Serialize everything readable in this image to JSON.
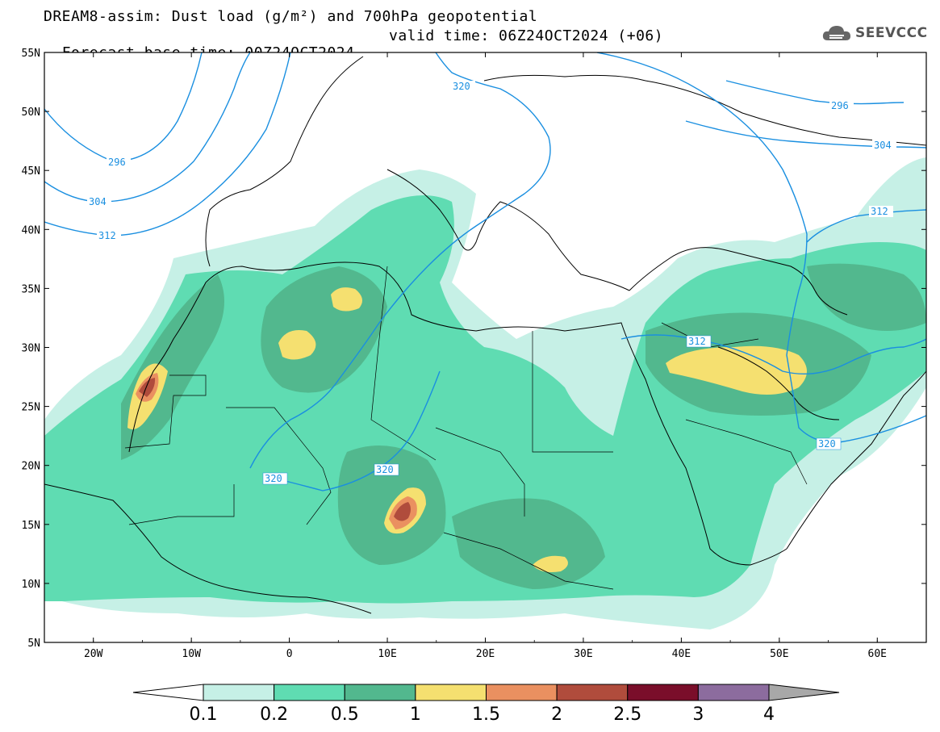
{
  "header": {
    "line1": "DREAM8-assim: Dust load (g/m²) and 700hPa geopotential",
    "base_time": "Forecast base time: 00Z24OCT2024",
    "valid_time": "valid time: 06Z24OCT2024 (+06)"
  },
  "logo": {
    "text": "SEEVCCC",
    "icon": "cloud-icon"
  },
  "map": {
    "lon_range": [
      -25,
      65
    ],
    "lat_range": [
      5,
      55
    ],
    "lat_labels": [
      "5N",
      "10N",
      "15N",
      "20N",
      "25N",
      "30N",
      "35N",
      "40N",
      "45N",
      "50N",
      "55N"
    ],
    "lon_labels": [
      "20W",
      "10W",
      "0",
      "10E",
      "20E",
      "30E",
      "40E",
      "50E",
      "60E"
    ],
    "contour_color": "#1a8fe0",
    "contour_labels": [
      "296",
      "304",
      "312",
      "320",
      "320",
      "320",
      "296",
      "304",
      "312",
      "312",
      "320"
    ]
  },
  "colorbar": {
    "levels": [
      "0.1",
      "0.2",
      "0.5",
      "1",
      "1.5",
      "2",
      "2.5",
      "3",
      "4"
    ],
    "colors": [
      "#ffffff",
      "#c6f0e6",
      "#5fdcb2",
      "#52b88e",
      "#f5e070",
      "#ea9060",
      "#b04c3c",
      "#7a0e2a",
      "#8c6c9e",
      "#a8a8a8"
    ]
  }
}
